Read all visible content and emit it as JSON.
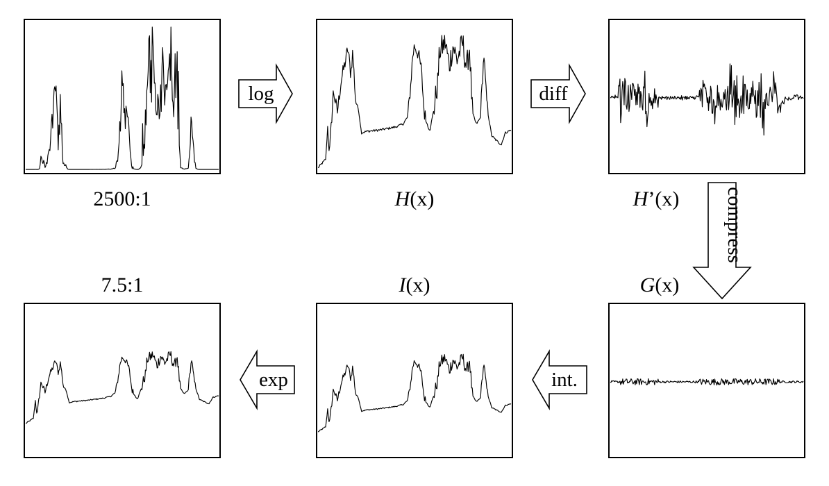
{
  "panels": [
    {
      "id": "original",
      "caption_pre": "2500:1",
      "caption_sym": "",
      "caption_post": ""
    },
    {
      "id": "log-signal",
      "caption_pre": "",
      "caption_sym": "H",
      "caption_post": "(x)"
    },
    {
      "id": "derivative",
      "caption_pre": "",
      "caption_sym": "H",
      "caption_post": "’(x)"
    },
    {
      "id": "compressed",
      "caption_pre": "",
      "caption_sym": "G",
      "caption_post": "(x)"
    },
    {
      "id": "integrated",
      "caption_pre": "",
      "caption_sym": "I",
      "caption_post": "(x)"
    },
    {
      "id": "output",
      "caption_pre": "7.5:1",
      "caption_sym": "",
      "caption_post": ""
    }
  ],
  "arrows": {
    "log": "log",
    "diff": "diff",
    "compress": "compress",
    "int": "int.",
    "exp": "exp"
  }
}
